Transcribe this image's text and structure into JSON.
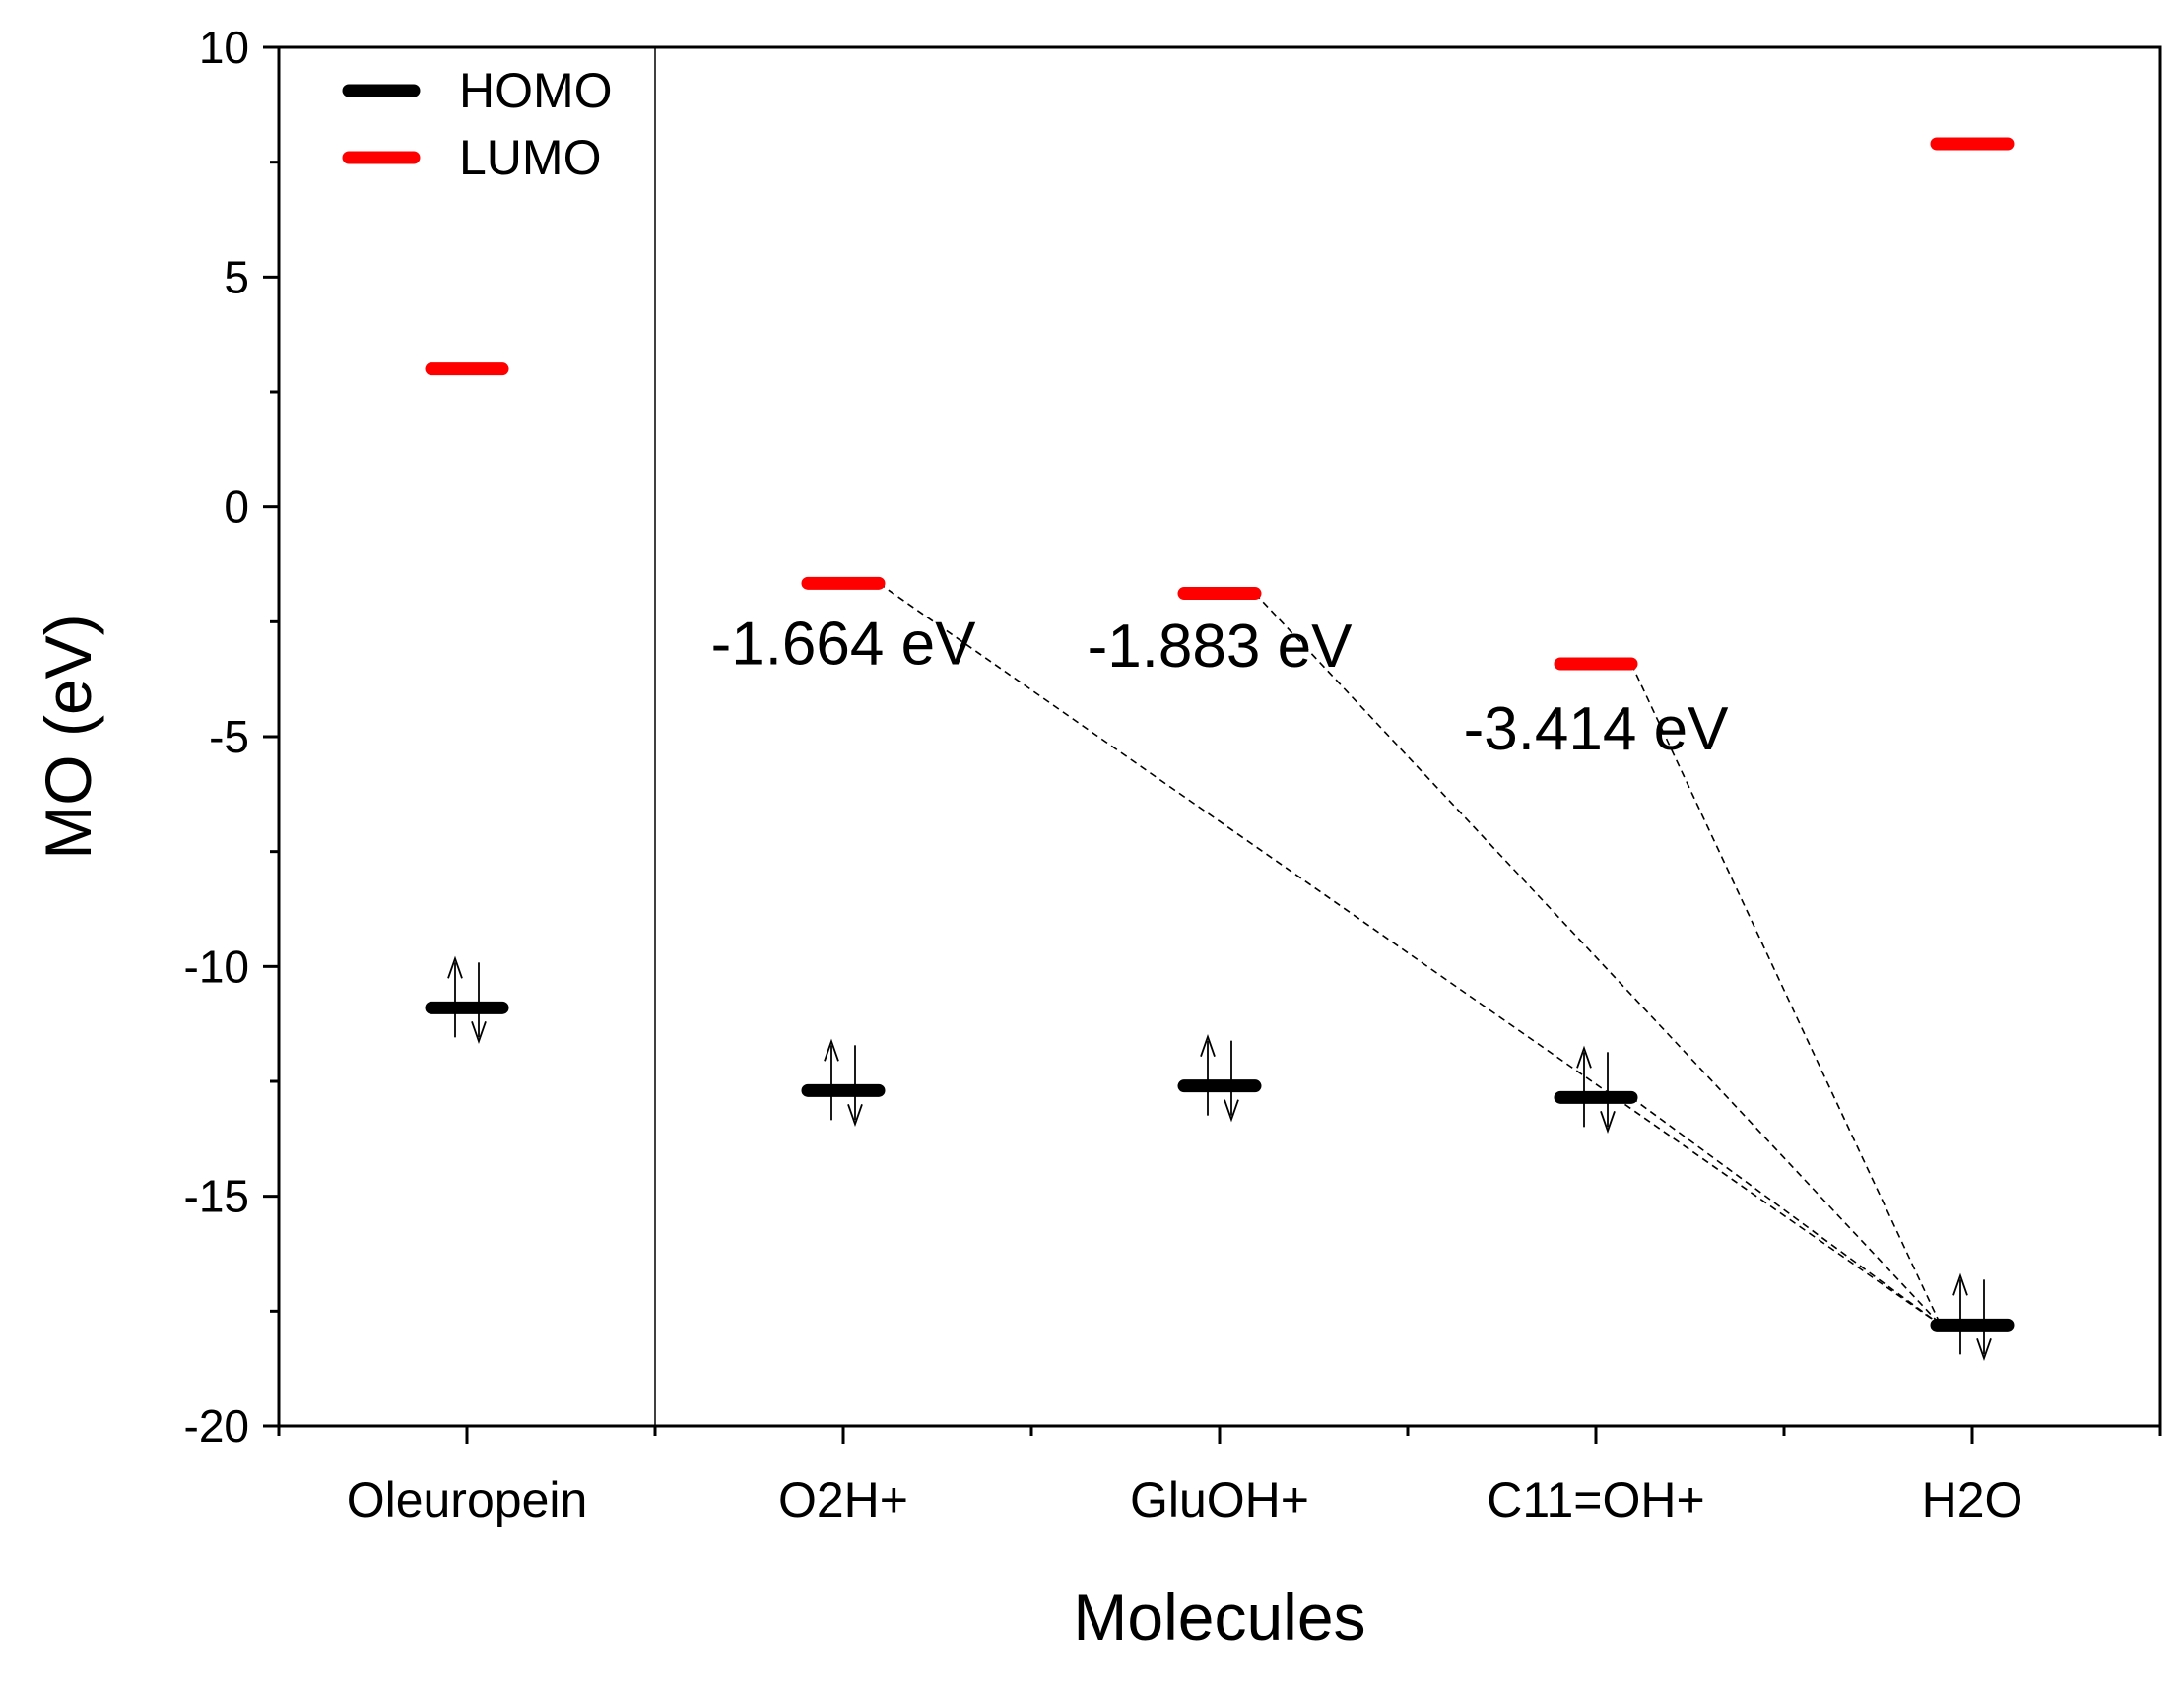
{
  "chart_data": {
    "type": "energy-level-diagram",
    "xlabel": "Molecules",
    "ylabel": "MO (eV)",
    "ylim": [
      -20,
      10
    ],
    "y_ticks": [
      10,
      5,
      0,
      -5,
      -10,
      -15,
      -20
    ],
    "y_tick_labels": [
      "10",
      "5",
      "0",
      "-5",
      "-10",
      "-15",
      "-20"
    ],
    "categories": [
      "Oleuropein",
      "O2H+",
      "GluOH+",
      "C11=OH+",
      "H2O"
    ],
    "series": [
      {
        "name": "HOMO",
        "color": "#000000",
        "values": [
          -10.9,
          -12.7,
          -12.6,
          -12.85,
          -17.8
        ]
      },
      {
        "name": "LUMO",
        "color": "#ff0000",
        "values": [
          3.0,
          -1.664,
          -1.883,
          -3.414,
          7.9
        ]
      }
    ],
    "legend_position": "top-left",
    "separator_after_category": "Oleuropein",
    "connections": [
      {
        "from": "O2H+",
        "to": "H2O"
      },
      {
        "from": "GluOH+",
        "to": "H2O"
      },
      {
        "from": "C11=OH+",
        "to": "H2O"
      }
    ],
    "annotations": [
      {
        "text": "-1.664 eV",
        "category": "O2H+",
        "y": -3.0
      },
      {
        "text": "-1.883 eV",
        "category": "GluOH+",
        "y": -3.05
      },
      {
        "text": "-3.414 eV",
        "category": "C11=OH+",
        "y": -4.85
      }
    ]
  }
}
